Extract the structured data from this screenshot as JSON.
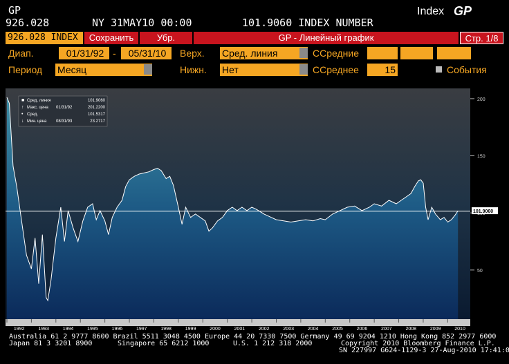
{
  "header": {
    "ticker": "GP",
    "price": "926.028",
    "time": "NY 31MAY10 00:00",
    "description": "101.9060 INDEX NUMBER",
    "index_label": "Index",
    "index_code": "GP"
  },
  "toolbar": {
    "security": "926.028 INDEX",
    "save": "Сохранить",
    "remove": "Убр.",
    "title": "GP - Линейный график",
    "page": "Стр. 1/8"
  },
  "form": {
    "range_label": "Диап.",
    "start": "01/31/92",
    "dash": "-",
    "end": "05/31/10",
    "upper_label": "Верх.",
    "upper_value": "Сред. линия",
    "ma_label": "ССредние",
    "period_label": "Период",
    "period_value": "Месяц",
    "lower_label": "Нижн.",
    "lower_value": "Нет",
    "ma_single_label": "ССреднее",
    "ma_single_value": "15",
    "events_label": "События"
  },
  "chart_data": {
    "type": "area",
    "x": [
      1992.0,
      1992.1,
      1992.25,
      1992.4,
      1992.6,
      1992.8,
      1993.0,
      1993.15,
      1993.3,
      1993.45,
      1993.6,
      1993.67,
      1993.8,
      1994.0,
      1994.2,
      1994.35,
      1994.5,
      1994.7,
      1994.9,
      1995.1,
      1995.3,
      1995.5,
      1995.65,
      1995.8,
      1996.0,
      1996.15,
      1996.3,
      1996.5,
      1996.7,
      1996.85,
      1997.0,
      1997.2,
      1997.4,
      1997.6,
      1997.8,
      1998.0,
      1998.15,
      1998.3,
      1998.5,
      1998.65,
      1998.8,
      1999.0,
      1999.15,
      1999.3,
      1999.5,
      1999.7,
      1999.9,
      2000.1,
      2000.25,
      2000.4,
      2000.6,
      2000.8,
      2001.0,
      2001.2,
      2001.4,
      2001.6,
      2001.8,
      2002.0,
      2002.2,
      2002.5,
      2002.8,
      2003.0,
      2003.3,
      2003.6,
      2003.9,
      2004.2,
      2004.5,
      2004.8,
      2005.0,
      2005.3,
      2005.6,
      2005.9,
      2006.2,
      2006.5,
      2006.8,
      2007.0,
      2007.3,
      2007.6,
      2007.9,
      2008.1,
      2008.3,
      2008.5,
      2008.65,
      2008.8,
      2008.9,
      2009.0,
      2009.1,
      2009.2,
      2009.35,
      2009.5,
      2009.7,
      2009.85,
      2010.0,
      2010.15,
      2010.3,
      2010.42
    ],
    "series": [
      {
        "name": "Сред. линия",
        "color": "#ffffff",
        "values": [
          201.22,
          196,
          141,
          123,
          93,
          63,
          51,
          78,
          38,
          81,
          26,
          23.2717,
          41,
          78,
          105,
          75,
          102,
          87,
          75,
          93,
          105,
          108,
          94,
          102,
          93,
          81,
          96,
          105,
          111,
          123,
          129,
          132,
          134,
          135,
          136,
          138,
          139,
          137,
          130,
          132,
          124,
          105,
          90,
          105,
          96,
          99,
          96,
          93,
          84,
          87,
          93,
          96,
          102,
          105,
          102,
          105,
          102,
          105,
          103,
          99,
          96,
          94,
          93,
          92,
          93,
          94,
          93,
          95,
          94,
          99,
          102,
          105,
          106,
          102,
          105,
          108,
          106,
          111,
          108,
          111,
          114,
          117,
          123,
          128,
          129,
          126,
          105,
          94,
          105,
          99,
          94,
          96,
          92,
          94,
          98,
          101.906
        ]
      }
    ],
    "xlim": [
      1992,
      2010.95
    ],
    "ylim": [
      7,
      209
    ],
    "xticks": [
      1992,
      1993,
      1994,
      1995,
      1996,
      1997,
      1998,
      1999,
      2000,
      2001,
      2002,
      2003,
      2004,
      2005,
      2006,
      2007,
      2008,
      2009,
      2010
    ],
    "yticks": [
      50,
      100,
      150,
      200
    ],
    "last_value": {
      "value": 101.906,
      "label": "101.9060"
    },
    "stats": [
      {
        "name": "Макс. цена",
        "date": "01/31/92",
        "value": {
          "value": 201.22,
          "label": "201.2200"
        }
      },
      {
        "name": "Сред.",
        "value": 101.5317
      },
      {
        "name": "Мин. цена",
        "date": "08/31/93",
        "value": 23.2717
      }
    ]
  },
  "footer": {
    "line1": "Australia 61 2 9777 8600 Brazil 5511 3048 4500 Europe 44 20 7330 7500 Germany 49 69 9204 1210 Hong Kong 852 2977 6000",
    "line2": [
      "Japan 81 3 3201 8900",
      "Singapore 65 6212 1000",
      "U.S. 1 212 318 2000",
      "Copyright 2010 Bloomberg Finance L.P."
    ],
    "line3": "SN 227997 G624-1129-3 27-Aug-2010 17:41:05"
  }
}
